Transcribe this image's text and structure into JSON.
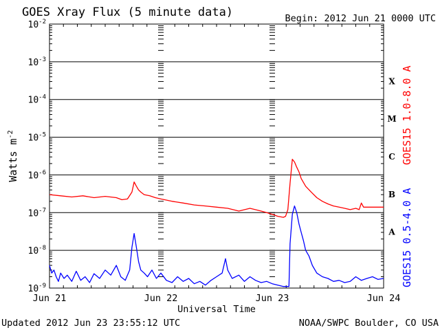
{
  "chart_data": {
    "type": "line",
    "title": "GOES Xray Flux (5 minute data)",
    "begin": "Begin:  2012 Jun 21 0000 UTC",
    "xlabel": "Universal Time",
    "ylabel": "Watts m",
    "ylabel_sup": "-2",
    "x_ticks": [
      "Jun 21",
      "Jun 22",
      "Jun 23",
      "Jun 24"
    ],
    "xlim": [
      0,
      3
    ],
    "x_unit": "days since Jun 21 0000 UTC",
    "y_scale": "log",
    "ylim": [
      1e-09,
      0.01
    ],
    "y_tick_exponents": [
      -2,
      -3,
      -4,
      -5,
      -6,
      -7,
      -8,
      -9
    ],
    "y_tick_base": "10",
    "flare_classes": [
      {
        "label": "X",
        "exp": -4
      },
      {
        "label": "M",
        "exp": -5
      },
      {
        "label": "C",
        "exp": -6
      },
      {
        "label": "B",
        "exp": -7
      },
      {
        "label": "A",
        "exp": -8
      }
    ],
    "grid": true,
    "series": [
      {
        "name": "GOES15 1.0-8.0 A",
        "color": "#ff0000",
        "x": [
          0.0,
          0.1,
          0.2,
          0.3,
          0.4,
          0.5,
          0.6,
          0.65,
          0.7,
          0.74,
          0.76,
          0.78,
          0.8,
          0.82,
          0.85,
          0.9,
          0.95,
          1.0,
          1.1,
          1.2,
          1.3,
          1.4,
          1.5,
          1.6,
          1.7,
          1.8,
          1.9,
          1.95,
          2.0,
          2.05,
          2.1,
          2.12,
          2.14,
          2.16,
          2.18,
          2.2,
          2.22,
          2.24,
          2.26,
          2.3,
          2.35,
          2.4,
          2.45,
          2.5,
          2.55,
          2.6,
          2.65,
          2.7,
          2.75,
          2.78,
          2.8,
          2.82,
          2.9,
          3.0
        ],
        "values": [
          3e-07,
          2.8e-07,
          2.6e-07,
          2.8e-07,
          2.5e-07,
          2.7e-07,
          2.5e-07,
          2.2e-07,
          2.3e-07,
          3.5e-07,
          6.5e-07,
          5e-07,
          4e-07,
          3.5e-07,
          3e-07,
          2.8e-07,
          2.5e-07,
          2.3e-07,
          2e-07,
          1.8e-07,
          1.6e-07,
          1.5e-07,
          1.4e-07,
          1.3e-07,
          1.1e-07,
          1.3e-07,
          1.1e-07,
          1e-07,
          9e-08,
          8e-08,
          7.5e-08,
          8e-08,
          1.2e-07,
          6e-07,
          2.6e-06,
          2.2e-06,
          1.6e-06,
          1.2e-06,
          8e-07,
          5e-07,
          3.5e-07,
          2.5e-07,
          2e-07,
          1.7e-07,
          1.5e-07,
          1.4e-07,
          1.3e-07,
          1.2e-07,
          1.3e-07,
          1.2e-07,
          1.8e-07,
          1.4e-07,
          1.4e-07,
          1.4e-07
        ]
      },
      {
        "name": "GOES15 0.5-4.0 A",
        "color": "#0000ff",
        "x": [
          0.0,
          0.02,
          0.04,
          0.06,
          0.08,
          0.1,
          0.13,
          0.16,
          0.2,
          0.24,
          0.28,
          0.32,
          0.36,
          0.4,
          0.45,
          0.5,
          0.55,
          0.6,
          0.64,
          0.68,
          0.72,
          0.74,
          0.76,
          0.78,
          0.8,
          0.82,
          0.85,
          0.88,
          0.92,
          0.96,
          1.0,
          1.05,
          1.1,
          1.15,
          1.2,
          1.25,
          1.3,
          1.35,
          1.4,
          1.45,
          1.5,
          1.55,
          1.58,
          1.6,
          1.64,
          1.7,
          1.75,
          1.8,
          1.85,
          1.9,
          1.95,
          2.0,
          2.05,
          2.1,
          2.15,
          2.16,
          2.18,
          2.2,
          2.22,
          2.24,
          2.26,
          2.28,
          2.3,
          2.33,
          2.36,
          2.4,
          2.45,
          2.5,
          2.55,
          2.6,
          2.65,
          2.7,
          2.75,
          2.8,
          2.85,
          2.9,
          2.95,
          3.0
        ],
        "values": [
          4e-09,
          2.5e-09,
          3e-09,
          2e-09,
          1.5e-09,
          2.5e-09,
          1.8e-09,
          2.2e-09,
          1.5e-09,
          2.8e-09,
          1.6e-09,
          2e-09,
          1.4e-09,
          2.4e-09,
          1.8e-09,
          3e-09,
          2.2e-09,
          4e-09,
          2e-09,
          1.6e-09,
          3e-09,
          1.2e-08,
          2.8e-08,
          1.2e-08,
          5e-09,
          3e-09,
          2.5e-09,
          2e-09,
          3e-09,
          1.8e-09,
          2.5e-09,
          1.6e-09,
          1.4e-09,
          2e-09,
          1.5e-09,
          1.8e-09,
          1.3e-09,
          1.5e-09,
          1.2e-09,
          1.6e-09,
          2e-09,
          2.5e-09,
          6e-09,
          3e-09,
          1.8e-09,
          2.2e-09,
          1.5e-09,
          2e-09,
          1.6e-09,
          1.4e-09,
          1.5e-09,
          1.3e-09,
          1.2e-09,
          1.1e-09,
          1.1e-09,
          1.5e-08,
          9e-08,
          1.5e-07,
          1e-07,
          5e-08,
          3e-08,
          1.8e-08,
          1e-08,
          7e-09,
          4e-09,
          2.5e-09,
          2e-09,
          1.8e-09,
          1.5e-09,
          1.6e-09,
          1.4e-09,
          1.5e-09,
          2e-09,
          1.6e-09,
          1.8e-09,
          2e-09,
          1.7e-09,
          1.8e-09
        ]
      }
    ]
  },
  "footer": {
    "updated": "Updated 2012 Jun 23 23:55:12 UTC",
    "source": "NOAA/SWPC Boulder, CO USA"
  }
}
